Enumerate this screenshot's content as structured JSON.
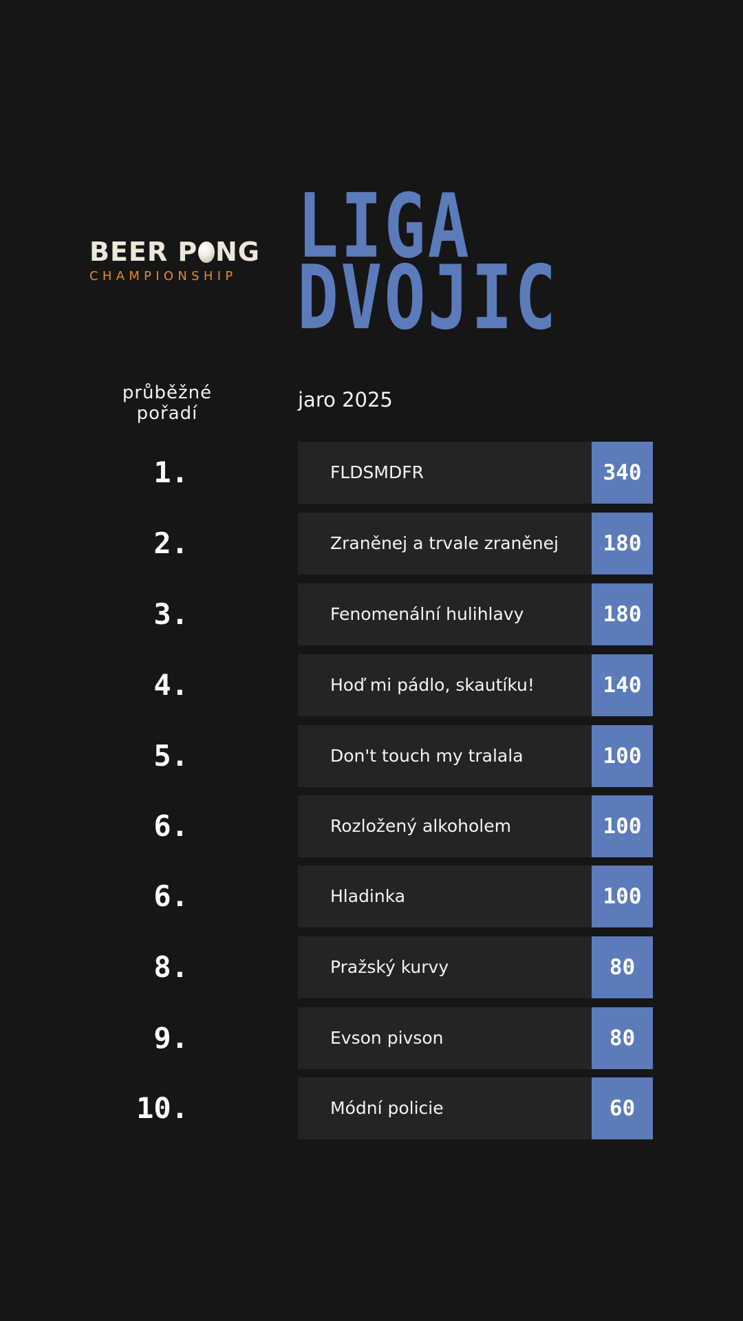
{
  "logo": {
    "main_left": "BEER P",
    "main_right": "NG",
    "sub": "CHAMPIONSHIP",
    "text": "BEER PONG CHAMPIONSHIP",
    "ball_icon": "ping-pong-ball-icon",
    "colors": {
      "main": "#ece7da",
      "sub": "#e8892b"
    }
  },
  "title": {
    "line1": "LIGA",
    "line2": "DVOJIC"
  },
  "subheader": {
    "left": "průběžné pořadí",
    "right": "jaro 2025"
  },
  "colors": {
    "background": "#161616",
    "row": "#242424",
    "accent": "#5b7bbb"
  },
  "rows": [
    {
      "rank": "1.",
      "team": "FLDSMDFR",
      "score": "340"
    },
    {
      "rank": "2.",
      "team": "Zraněnej a trvale zraněnej",
      "score": "180"
    },
    {
      "rank": "3.",
      "team": "Fenomenální hulihlavy",
      "score": "180"
    },
    {
      "rank": "4.",
      "team": "Hoď mi pádlo, skautíku!",
      "score": "140"
    },
    {
      "rank": "5.",
      "team": "Don't touch my tralala",
      "score": "100"
    },
    {
      "rank": "6.",
      "team": "Rozložený alkoholem",
      "score": "100"
    },
    {
      "rank": "6.",
      "team": "Hladinka",
      "score": "100"
    },
    {
      "rank": "8.",
      "team": "Pražský kurvy",
      "score": "80"
    },
    {
      "rank": "9.",
      "team": "Evson pivson",
      "score": "80"
    },
    {
      "rank": "10.",
      "team": "Módní policie",
      "score": "60"
    }
  ]
}
